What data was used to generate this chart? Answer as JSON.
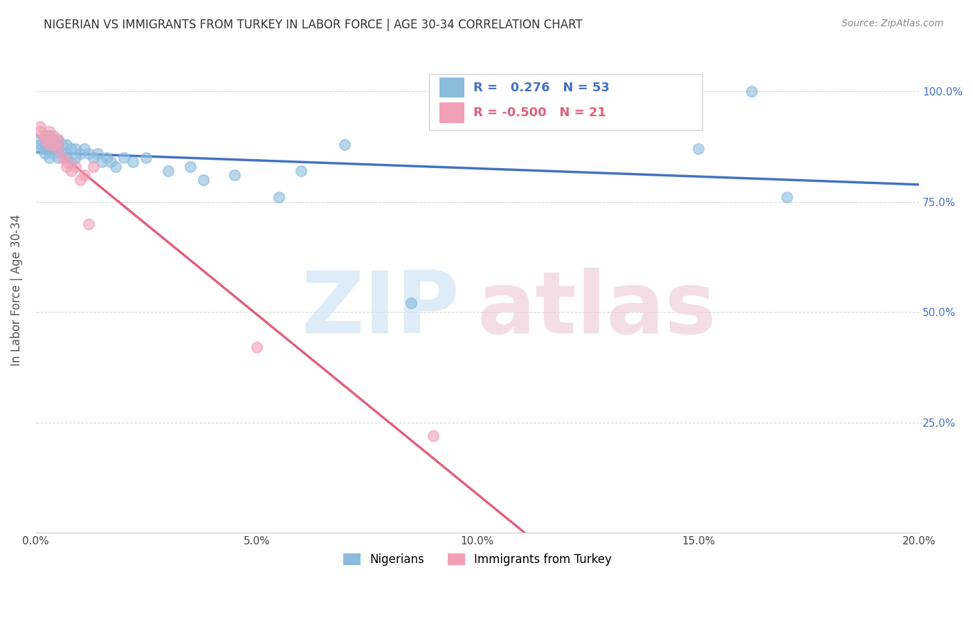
{
  "title": "NIGERIAN VS IMMIGRANTS FROM TURKEY IN LABOR FORCE | AGE 30-34 CORRELATION CHART",
  "source": "Source: ZipAtlas.com",
  "ylabel": "In Labor Force | Age 30-34",
  "xlim": [
    0.0,
    0.2
  ],
  "ylim": [
    0.0,
    1.1
  ],
  "xtick_labels": [
    "0.0%",
    "5.0%",
    "10.0%",
    "15.0%",
    "20.0%"
  ],
  "xtick_vals": [
    0.0,
    0.05,
    0.1,
    0.15,
    0.2
  ],
  "ytick_labels": [
    "25.0%",
    "50.0%",
    "75.0%",
    "100.0%"
  ],
  "ytick_vals": [
    0.25,
    0.5,
    0.75,
    1.0
  ],
  "nigerian_x": [
    0.001,
    0.001,
    0.001,
    0.002,
    0.002,
    0.002,
    0.002,
    0.002,
    0.003,
    0.003,
    0.003,
    0.003,
    0.003,
    0.004,
    0.004,
    0.004,
    0.004,
    0.005,
    0.005,
    0.005,
    0.005,
    0.006,
    0.006,
    0.007,
    0.007,
    0.007,
    0.008,
    0.008,
    0.009,
    0.009,
    0.01,
    0.011,
    0.012,
    0.013,
    0.014,
    0.015,
    0.016,
    0.017,
    0.018,
    0.02,
    0.022,
    0.025,
    0.03,
    0.035,
    0.038,
    0.045,
    0.055,
    0.06,
    0.07,
    0.085,
    0.15,
    0.162,
    0.17
  ],
  "nigerian_y": [
    0.87,
    0.88,
    0.89,
    0.86,
    0.87,
    0.88,
    0.89,
    0.9,
    0.85,
    0.87,
    0.88,
    0.89,
    0.9,
    0.86,
    0.87,
    0.88,
    0.89,
    0.85,
    0.87,
    0.88,
    0.89,
    0.86,
    0.88,
    0.85,
    0.86,
    0.88,
    0.84,
    0.87,
    0.85,
    0.87,
    0.86,
    0.87,
    0.86,
    0.85,
    0.86,
    0.84,
    0.85,
    0.84,
    0.83,
    0.85,
    0.84,
    0.85,
    0.82,
    0.83,
    0.8,
    0.81,
    0.76,
    0.82,
    0.88,
    0.52,
    0.87,
    1.0,
    0.76
  ],
  "turkey_x": [
    0.001,
    0.001,
    0.002,
    0.002,
    0.003,
    0.003,
    0.004,
    0.004,
    0.005,
    0.005,
    0.006,
    0.007,
    0.007,
    0.008,
    0.009,
    0.01,
    0.011,
    0.012,
    0.013,
    0.05,
    0.09
  ],
  "turkey_y": [
    0.91,
    0.92,
    0.89,
    0.9,
    0.88,
    0.91,
    0.88,
    0.9,
    0.87,
    0.89,
    0.85,
    0.83,
    0.84,
    0.82,
    0.83,
    0.8,
    0.81,
    0.7,
    0.83,
    0.42,
    0.22
  ],
  "nigerian_color": "#8bbcde",
  "turkey_color": "#f2a0b8",
  "nigerian_line_color": "#4472c4",
  "turkey_line_color": "#e06080",
  "grid_color": "#d8d8d8",
  "right_axis_color": "#4472c4",
  "title_color": "#333333",
  "source_color": "#888888",
  "legend_nigerian_text": "R =   0.276   N = 53",
  "legend_turkey_text": "R = -0.500   N = 21",
  "watermark_zip_color": "#d0e4f5",
  "watermark_atlas_color": "#f0d0dc",
  "bottom_legend_nigerian": "Nigerians",
  "bottom_legend_turkey": "Immigrants from Turkey"
}
